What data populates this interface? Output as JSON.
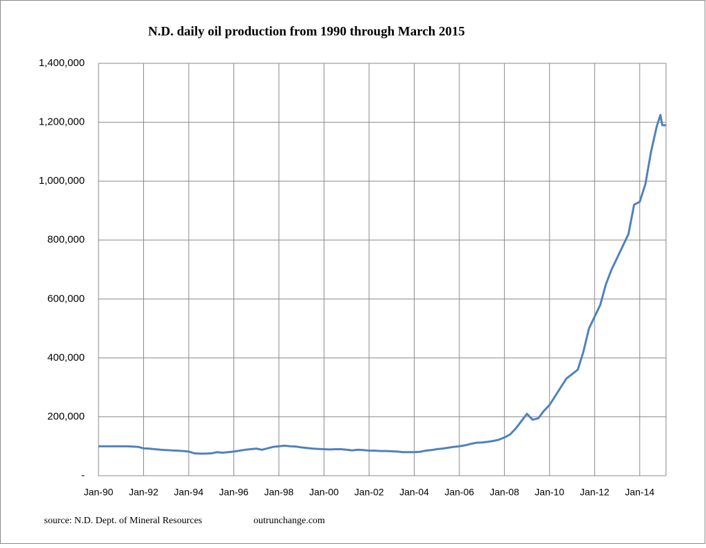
{
  "chart_data": {
    "type": "line",
    "title": "N.D. daily oil production from 1990 through March  2015",
    "source": "source: N.D. Dept. of Mineral Resources",
    "site": "outrunchange.com",
    "x": [
      "1990-01",
      "1990-04",
      "1990-07",
      "1990-10",
      "1991-01",
      "1991-04",
      "1991-07",
      "1991-10",
      "1992-01",
      "1992-04",
      "1992-07",
      "1992-10",
      "1993-01",
      "1993-04",
      "1993-07",
      "1993-10",
      "1994-01",
      "1994-04",
      "1994-07",
      "1994-10",
      "1995-01",
      "1995-04",
      "1995-07",
      "1995-10",
      "1996-01",
      "1996-04",
      "1996-07",
      "1996-10",
      "1997-01",
      "1997-04",
      "1997-07",
      "1997-10",
      "1998-01",
      "1998-04",
      "1998-07",
      "1998-10",
      "1999-01",
      "1999-04",
      "1999-07",
      "1999-10",
      "2000-01",
      "2000-04",
      "2000-07",
      "2000-10",
      "2001-01",
      "2001-04",
      "2001-07",
      "2001-10",
      "2002-01",
      "2002-04",
      "2002-07",
      "2002-10",
      "2003-01",
      "2003-04",
      "2003-07",
      "2003-10",
      "2004-01",
      "2004-04",
      "2004-07",
      "2004-10",
      "2005-01",
      "2005-04",
      "2005-07",
      "2005-10",
      "2006-01",
      "2006-04",
      "2006-07",
      "2006-10",
      "2007-01",
      "2007-04",
      "2007-07",
      "2007-10",
      "2008-01",
      "2008-04",
      "2008-07",
      "2008-10",
      "2009-01",
      "2009-04",
      "2009-07",
      "2009-10",
      "2010-01",
      "2010-04",
      "2010-07",
      "2010-10",
      "2011-01",
      "2011-04",
      "2011-07",
      "2011-10",
      "2012-01",
      "2012-04",
      "2012-07",
      "2012-10",
      "2013-01",
      "2013-04",
      "2013-07",
      "2013-10",
      "2014-01",
      "2014-04",
      "2014-07",
      "2014-10",
      "2014-12",
      "2015-01",
      "2015-03"
    ],
    "series": [
      {
        "name": "Daily oil production",
        "color": "#4f81bd",
        "values": [
          100000,
          100000,
          100000,
          100000,
          100000,
          100000,
          99000,
          98000,
          93000,
          92000,
          90000,
          88000,
          87000,
          86000,
          85000,
          84000,
          82000,
          76000,
          75000,
          75000,
          76000,
          80000,
          78000,
          80000,
          82000,
          85000,
          88000,
          90000,
          92000,
          88000,
          93000,
          98000,
          100000,
          102000,
          100000,
          99000,
          96000,
          94000,
          92000,
          91000,
          90000,
          89000,
          90000,
          90000,
          88000,
          86000,
          88000,
          87000,
          85000,
          85000,
          84000,
          84000,
          83000,
          82000,
          80000,
          80000,
          80000,
          81000,
          85000,
          87000,
          90000,
          92000,
          95000,
          98000,
          100000,
          103000,
          108000,
          112000,
          113000,
          115000,
          118000,
          122000,
          130000,
          140000,
          160000,
          185000,
          210000,
          190000,
          195000,
          220000,
          240000,
          270000,
          300000,
          330000,
          345000,
          360000,
          420000,
          500000,
          540000,
          580000,
          650000,
          700000,
          740000,
          780000,
          820000,
          920000,
          930000,
          990000,
          1100000,
          1185000,
          1225000,
          1190000,
          1190000
        ]
      }
    ],
    "xlim": [
      "1990-01",
      "2015-03"
    ],
    "xticks": [
      {
        "value": "1990-01",
        "label": "Jan-90"
      },
      {
        "value": "1992-01",
        "label": "Jan-92"
      },
      {
        "value": "1994-01",
        "label": "Jan-94"
      },
      {
        "value": "1996-01",
        "label": "Jan-96"
      },
      {
        "value": "1998-01",
        "label": "Jan-98"
      },
      {
        "value": "2000-01",
        "label": "Jan-00"
      },
      {
        "value": "2002-01",
        "label": "Jan-02"
      },
      {
        "value": "2004-01",
        "label": "Jan-04"
      },
      {
        "value": "2006-01",
        "label": "Jan-06"
      },
      {
        "value": "2008-01",
        "label": "Jan-08"
      },
      {
        "value": "2010-01",
        "label": "Jan-10"
      },
      {
        "value": "2012-01",
        "label": "Jan-12"
      },
      {
        "value": "2014-01",
        "label": "Jan-14"
      }
    ],
    "ylim": [
      0,
      1400000
    ],
    "yticks": [
      {
        "value": 0,
        "label": "-"
      },
      {
        "value": 200000,
        "label": "200,000"
      },
      {
        "value": 400000,
        "label": "400,000"
      },
      {
        "value": 600000,
        "label": "600,000"
      },
      {
        "value": 800000,
        "label": "800,000"
      },
      {
        "value": 1000000,
        "label": "1,000,000"
      },
      {
        "value": 1200000,
        "label": "1,200,000"
      },
      {
        "value": 1400000,
        "label": "1,400,000"
      }
    ],
    "grid": true
  }
}
